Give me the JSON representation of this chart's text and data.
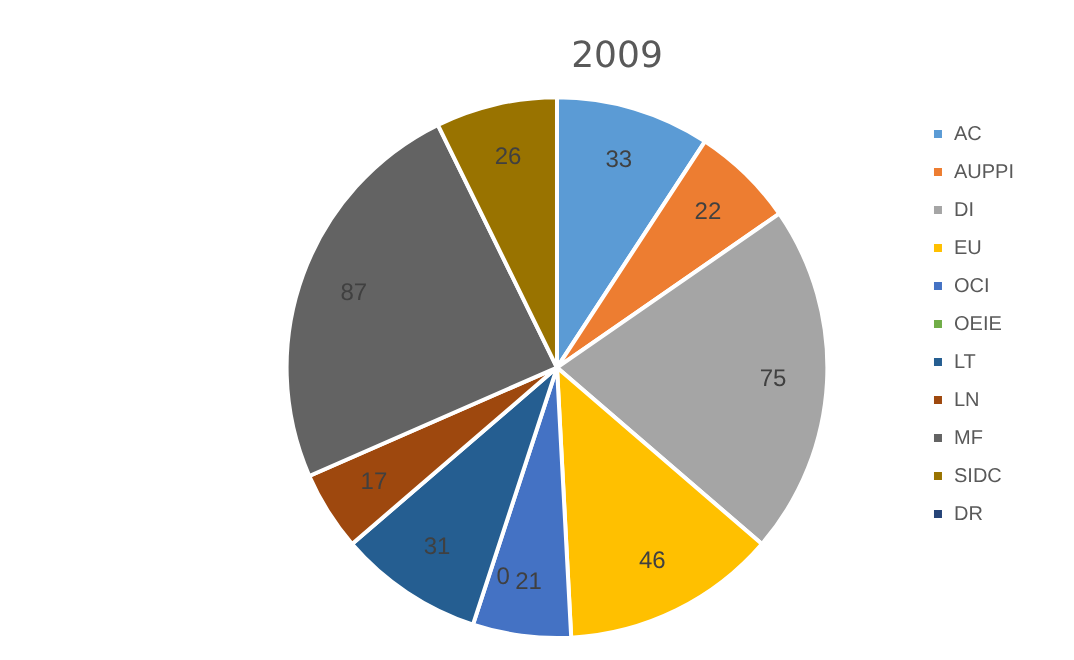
{
  "chart_data": {
    "type": "pie",
    "title": "2009",
    "categories": [
      "AC",
      "AUPPI",
      "DI",
      "EU",
      "OCI",
      "OEIE",
      "LT",
      "LN",
      "MF",
      "SIDC",
      "DR"
    ],
    "values": [
      33,
      22,
      75,
      46,
      21,
      0,
      31,
      17,
      87,
      26,
      0
    ],
    "value_labels": [
      "33",
      "22",
      "75",
      "46",
      "21",
      "0",
      "31",
      "17",
      "87",
      "26",
      null
    ],
    "colors": [
      "#5b9bd5",
      "#ed7d31",
      "#a5a5a5",
      "#ffc000",
      "#4472c4",
      "#70ad47",
      "#255e91",
      "#9e480e",
      "#636363",
      "#997300",
      "#264478"
    ],
    "legend": "right"
  }
}
